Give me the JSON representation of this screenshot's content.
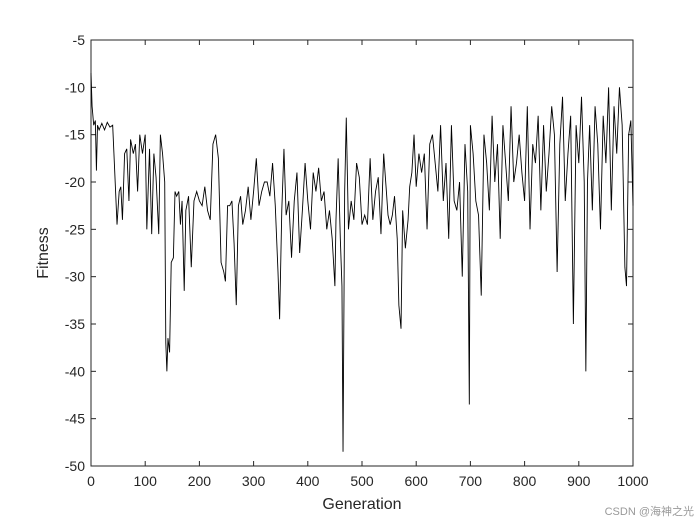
{
  "chart_data": {
    "type": "line",
    "xlabel": "Generation",
    "ylabel": "Fitness",
    "watermark": "CSDN @海神之光",
    "xlim": [
      0,
      1000
    ],
    "xticks": [
      0,
      100,
      200,
      300,
      400,
      500,
      600,
      700,
      800,
      900,
      1000
    ],
    "ylim": [
      -50,
      -5
    ],
    "yticks": [
      -5,
      -10,
      -15,
      -20,
      -25,
      -30,
      -35,
      -40,
      -45,
      -50
    ],
    "grid": false,
    "series": [
      {
        "color": "#000000",
        "x": [
          0,
          2,
          5,
          8,
          10,
          12,
          15,
          20,
          25,
          30,
          35,
          40,
          45,
          48,
          52,
          55,
          58,
          62,
          66,
          70,
          73,
          78,
          82,
          86,
          90,
          95,
          100,
          103,
          108,
          112,
          116,
          120,
          125,
          128,
          132,
          136,
          138,
          140,
          142,
          145,
          148,
          152,
          155,
          158,
          162,
          165,
          168,
          172,
          175,
          180,
          185,
          190,
          195,
          200,
          205,
          210,
          215,
          220,
          225,
          230,
          235,
          240,
          245,
          248,
          252,
          256,
          260,
          264,
          268,
          272,
          276,
          280,
          285,
          290,
          295,
          300,
          305,
          310,
          315,
          320,
          325,
          330,
          335,
          340,
          345,
          348,
          352,
          356,
          360,
          365,
          370,
          375,
          380,
          385,
          390,
          395,
          400,
          405,
          410,
          415,
          420,
          425,
          430,
          435,
          440,
          445,
          450,
          452,
          456,
          460,
          463,
          465,
          468,
          471,
          475,
          480,
          485,
          490,
          495,
          500,
          505,
          510,
          515,
          520,
          525,
          530,
          535,
          540,
          545,
          548,
          552,
          556,
          560,
          565,
          568,
          572,
          575,
          580,
          585,
          588,
          592,
          596,
          600,
          605,
          610,
          615,
          620,
          625,
          630,
          635,
          640,
          645,
          650,
          655,
          660,
          665,
          670,
          675,
          680,
          685,
          690,
          695,
          698,
          700,
          705,
          710,
          715,
          720,
          725,
          730,
          735,
          740,
          745,
          750,
          755,
          760,
          765,
          770,
          775,
          780,
          785,
          790,
          795,
          800,
          805,
          810,
          815,
          820,
          825,
          830,
          835,
          840,
          845,
          850,
          855,
          860,
          865,
          870,
          875,
          880,
          885,
          890,
          895,
          900,
          905,
          910,
          913,
          916,
          920,
          925,
          930,
          935,
          940,
          945,
          950,
          955,
          960,
          965,
          970,
          975,
          980,
          985,
          988,
          992,
          996,
          1000
        ],
        "values": [
          -8.5,
          -12,
          -14,
          -13.5,
          -18.8,
          -14,
          -14.5,
          -13.8,
          -14.5,
          -13.7,
          -14.2,
          -14,
          -20.5,
          -24.5,
          -21,
          -20.5,
          -24,
          -17,
          -16.5,
          -22,
          -15.5,
          -17,
          -16,
          -21,
          -15,
          -17,
          -15,
          -25,
          -16.5,
          -25.5,
          -17,
          -19.5,
          -25.5,
          -15,
          -17,
          -20,
          -37,
          -40,
          -36.5,
          -38,
          -28.5,
          -28,
          -21,
          -21.5,
          -21,
          -24.5,
          -22,
          -31.5,
          -23,
          -21.5,
          -29,
          -22,
          -21,
          -22,
          -22.5,
          -20.5,
          -23,
          -24,
          -16,
          -15,
          -17.5,
          -28.5,
          -29.5,
          -30.5,
          -22.5,
          -22.5,
          -22,
          -26.5,
          -33,
          -22.5,
          -21.5,
          -24.5,
          -23,
          -20.5,
          -24,
          -21,
          -17.5,
          -22.5,
          -21,
          -20,
          -20,
          -21.5,
          -18,
          -22.5,
          -29.5,
          -34.5,
          -23,
          -16.5,
          -23.5,
          -22,
          -28,
          -22,
          -19,
          -27.5,
          -23,
          -18,
          -22,
          -25,
          -19,
          -21,
          -18.5,
          -22,
          -21,
          -25,
          -23,
          -26,
          -31,
          -24,
          -17.5,
          -26,
          -31,
          -48.5,
          -21,
          -13.2,
          -25,
          -22,
          -24,
          -18,
          -19.5,
          -24.5,
          -23.5,
          -24.5,
          -17.5,
          -24,
          -21,
          -19.5,
          -25.5,
          -17,
          -21,
          -23.5,
          -24.5,
          -23.5,
          -21.5,
          -26,
          -33,
          -35.5,
          -23,
          -27,
          -24,
          -20.5,
          -19,
          -15,
          -20.5,
          -17,
          -19,
          -17,
          -25,
          -16,
          -15,
          -18,
          -21,
          -14,
          -22,
          -18,
          -26,
          -14,
          -22,
          -23,
          -20,
          -30,
          -16,
          -21,
          -43.5,
          -14,
          -17,
          -22,
          -23.5,
          -32,
          -15,
          -18,
          -23,
          -13,
          -20,
          -16,
          -26,
          -14,
          -18,
          -22,
          -12,
          -20,
          -18,
          -15,
          -19,
          -22,
          -12,
          -25,
          -16,
          -18,
          -13,
          -23,
          -14,
          -21,
          -17,
          -12,
          -15,
          -29.5,
          -16,
          -11,
          -22,
          -17,
          -13,
          -35,
          -14,
          -18,
          -11,
          -20,
          -40,
          -20,
          -14,
          -23,
          -12,
          -16,
          -25,
          -13,
          -18,
          -10,
          -23,
          -12,
          -17,
          -10,
          -14,
          -29,
          -31,
          -15,
          -13.5,
          -22.5
        ]
      }
    ]
  }
}
